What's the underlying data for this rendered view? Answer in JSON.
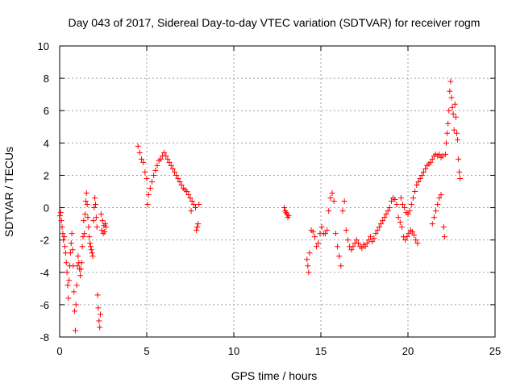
{
  "chart_data": {
    "type": "scatter",
    "title": "Day 043 of 2017, Sidereal Day-to-day VTEC variation (SDTVAR) for receiver rogm",
    "xlabel": "GPS time / hours",
    "ylabel": "SDTVAR / TECUs",
    "xlim": [
      0,
      25
    ],
    "ylim": [
      -8,
      10
    ],
    "xticks": [
      0,
      5,
      10,
      15,
      20,
      25
    ],
    "yticks": [
      -8,
      -6,
      -4,
      -2,
      0,
      2,
      4,
      6,
      8,
      10
    ],
    "grid": true,
    "marker": "plus",
    "color": "#ff0000",
    "series": [
      {
        "name": "SDTVAR",
        "points": [
          [
            0.02,
            -0.5
          ],
          [
            0.06,
            -0.3
          ],
          [
            0.1,
            -0.8
          ],
          [
            0.14,
            -1.2
          ],
          [
            0.18,
            -1.6
          ],
          [
            0.22,
            -2.0
          ],
          [
            0.26,
            -1.8
          ],
          [
            0.3,
            -2.4
          ],
          [
            0.34,
            -2.8
          ],
          [
            0.38,
            -3.4
          ],
          [
            0.42,
            -4.0
          ],
          [
            0.46,
            -4.8
          ],
          [
            0.5,
            -5.6
          ],
          [
            0.54,
            -4.5
          ],
          [
            0.58,
            -3.6
          ],
          [
            0.62,
            -2.8
          ],
          [
            0.66,
            -2.2
          ],
          [
            0.7,
            -1.6
          ],
          [
            0.74,
            -2.6
          ],
          [
            0.78,
            -3.6
          ],
          [
            0.82,
            -5.2
          ],
          [
            0.86,
            -6.4
          ],
          [
            0.9,
            -7.6
          ],
          [
            0.94,
            -6.0
          ],
          [
            0.98,
            -4.8
          ],
          [
            1.02,
            -3.6
          ],
          [
            1.06,
            -3.0
          ],
          [
            1.1,
            -3.4
          ],
          [
            1.14,
            -3.8
          ],
          [
            1.18,
            -4.2
          ],
          [
            1.22,
            -3.8
          ],
          [
            1.26,
            -3.4
          ],
          [
            1.3,
            -2.4
          ],
          [
            1.34,
            -1.8
          ],
          [
            1.38,
            -0.8
          ],
          [
            1.42,
            -1.6
          ],
          [
            1.46,
            -0.4
          ],
          [
            1.5,
            0.4
          ],
          [
            1.54,
            0.9
          ],
          [
            1.58,
            0.2
          ],
          [
            1.62,
            -0.6
          ],
          [
            1.66,
            -1.2
          ],
          [
            1.7,
            -1.8
          ],
          [
            1.74,
            -2.2
          ],
          [
            1.78,
            -2.4
          ],
          [
            1.82,
            -2.6
          ],
          [
            1.86,
            -2.8
          ],
          [
            1.9,
            -3.0
          ],
          [
            1.94,
            -0.8
          ],
          [
            1.98,
            0.0
          ],
          [
            2.02,
            0.6
          ],
          [
            2.06,
            0.2
          ],
          [
            2.1,
            -0.6
          ],
          [
            2.14,
            -1.2
          ],
          [
            2.18,
            -5.4
          ],
          [
            2.22,
            -6.2
          ],
          [
            2.26,
            -7.0
          ],
          [
            2.3,
            -7.4
          ],
          [
            2.34,
            -6.6
          ],
          [
            2.38,
            -0.4
          ],
          [
            2.42,
            -1.4
          ],
          [
            2.46,
            -0.8
          ],
          [
            2.5,
            -1.6
          ],
          [
            2.54,
            -1.1
          ],
          [
            2.58,
            -1.5
          ],
          [
            2.62,
            -1.0
          ],
          [
            2.66,
            -1.2
          ],
          [
            4.5,
            3.8
          ],
          [
            4.6,
            3.4
          ],
          [
            4.7,
            3.0
          ],
          [
            4.8,
            2.8
          ],
          [
            4.9,
            2.2
          ],
          [
            5.0,
            1.8
          ],
          [
            5.05,
            0.2
          ],
          [
            5.1,
            0.8
          ],
          [
            5.2,
            1.2
          ],
          [
            5.3,
            1.6
          ],
          [
            5.4,
            2.0
          ],
          [
            5.5,
            2.3
          ],
          [
            5.6,
            2.6
          ],
          [
            5.7,
            2.9
          ],
          [
            5.8,
            3.0
          ],
          [
            5.9,
            3.2
          ],
          [
            6.0,
            3.4
          ],
          [
            6.1,
            3.2
          ],
          [
            6.2,
            3.0
          ],
          [
            6.3,
            2.8
          ],
          [
            6.4,
            2.6
          ],
          [
            6.5,
            2.4
          ],
          [
            6.6,
            2.2
          ],
          [
            6.7,
            2.0
          ],
          [
            6.8,
            1.8
          ],
          [
            6.9,
            1.6
          ],
          [
            7.0,
            1.4
          ],
          [
            7.1,
            1.2
          ],
          [
            7.2,
            1.1
          ],
          [
            7.3,
            1.0
          ],
          [
            7.4,
            0.8
          ],
          [
            7.5,
            0.6
          ],
          [
            7.55,
            -0.2
          ],
          [
            7.6,
            0.4
          ],
          [
            7.7,
            0.2
          ],
          [
            7.8,
            0.0
          ],
          [
            7.85,
            -1.4
          ],
          [
            7.9,
            -1.2
          ],
          [
            7.95,
            -1.0
          ],
          [
            8.0,
            0.2
          ],
          [
            12.9,
            0.0
          ],
          [
            12.95,
            -0.2
          ],
          [
            13.0,
            -0.3
          ],
          [
            13.05,
            -0.4
          ],
          [
            13.1,
            -0.6
          ],
          [
            13.15,
            -0.5
          ],
          [
            14.2,
            -3.2
          ],
          [
            14.25,
            -3.6
          ],
          [
            14.3,
            -4.0
          ],
          [
            14.35,
            -2.8
          ],
          [
            14.45,
            -1.4
          ],
          [
            14.55,
            -1.5
          ],
          [
            14.65,
            -1.8
          ],
          [
            14.75,
            -2.4
          ],
          [
            14.85,
            -2.2
          ],
          [
            14.95,
            -1.6
          ],
          [
            15.05,
            -1.2
          ],
          [
            15.15,
            -1.6
          ],
          [
            15.25,
            -1.6
          ],
          [
            15.35,
            -1.4
          ],
          [
            15.45,
            -0.2
          ],
          [
            15.55,
            0.6
          ],
          [
            15.65,
            0.9
          ],
          [
            15.75,
            0.4
          ],
          [
            15.85,
            -1.6
          ],
          [
            15.95,
            -2.4
          ],
          [
            16.05,
            -3.0
          ],
          [
            16.15,
            -3.6
          ],
          [
            16.25,
            -0.2
          ],
          [
            16.35,
            0.4
          ],
          [
            16.45,
            -1.4
          ],
          [
            16.55,
            -2.0
          ],
          [
            16.65,
            -2.4
          ],
          [
            16.75,
            -2.6
          ],
          [
            16.85,
            -2.4
          ],
          [
            16.95,
            -2.2
          ],
          [
            17.05,
            -2.0
          ],
          [
            17.15,
            -2.2
          ],
          [
            17.25,
            -2.4
          ],
          [
            17.35,
            -2.5
          ],
          [
            17.45,
            -2.3
          ],
          [
            17.55,
            -2.4
          ],
          [
            17.65,
            -2.2
          ],
          [
            17.75,
            -2.0
          ],
          [
            17.85,
            -1.8
          ],
          [
            17.95,
            -2.1
          ],
          [
            18.05,
            -1.9
          ],
          [
            18.15,
            -1.6
          ],
          [
            18.25,
            -1.4
          ],
          [
            18.35,
            -1.2
          ],
          [
            18.45,
            -1.0
          ],
          [
            18.55,
            -0.8
          ],
          [
            18.65,
            -0.6
          ],
          [
            18.75,
            -0.4
          ],
          [
            18.85,
            -0.2
          ],
          [
            18.95,
            0.0
          ],
          [
            19.05,
            0.4
          ],
          [
            19.15,
            0.6
          ],
          [
            19.25,
            0.5
          ],
          [
            19.35,
            0.2
          ],
          [
            19.45,
            -0.6
          ],
          [
            19.55,
            -0.9
          ],
          [
            19.65,
            -1.2
          ],
          [
            19.75,
            -1.8
          ],
          [
            19.85,
            -2.0
          ],
          [
            19.95,
            -1.8
          ],
          [
            20.05,
            -1.6
          ],
          [
            20.15,
            -1.4
          ],
          [
            20.25,
            -1.5
          ],
          [
            20.35,
            -1.7
          ],
          [
            20.45,
            -2.0
          ],
          [
            20.55,
            -2.2
          ],
          [
            19.6,
            0.6
          ],
          [
            19.7,
            0.2
          ],
          [
            19.8,
            0.0
          ],
          [
            19.9,
            -0.3
          ],
          [
            20.0,
            -0.4
          ],
          [
            20.1,
            -0.2
          ],
          [
            20.2,
            0.2
          ],
          [
            20.3,
            0.6
          ],
          [
            20.4,
            1.0
          ],
          [
            20.5,
            1.4
          ],
          [
            20.6,
            1.6
          ],
          [
            20.7,
            1.8
          ],
          [
            20.8,
            2.0
          ],
          [
            20.9,
            2.2
          ],
          [
            21.0,
            2.4
          ],
          [
            21.1,
            2.6
          ],
          [
            21.2,
            2.7
          ],
          [
            21.3,
            2.8
          ],
          [
            21.4,
            3.0
          ],
          [
            21.5,
            3.2
          ],
          [
            21.6,
            3.3
          ],
          [
            21.7,
            3.2
          ],
          [
            21.8,
            3.3
          ],
          [
            21.9,
            3.1
          ],
          [
            21.4,
            -1.0
          ],
          [
            21.5,
            -0.6
          ],
          [
            21.6,
            -0.2
          ],
          [
            21.7,
            0.2
          ],
          [
            21.8,
            0.6
          ],
          [
            21.9,
            0.8
          ],
          [
            22.0,
            3.2
          ],
          [
            22.05,
            -1.2
          ],
          [
            22.1,
            -1.8
          ],
          [
            22.15,
            3.3
          ],
          [
            22.2,
            4.0
          ],
          [
            22.25,
            4.6
          ],
          [
            22.3,
            5.2
          ],
          [
            22.35,
            6.0
          ],
          [
            22.4,
            7.2
          ],
          [
            22.45,
            7.8
          ],
          [
            22.5,
            6.8
          ],
          [
            22.55,
            6.2
          ],
          [
            22.6,
            5.8
          ],
          [
            22.65,
            4.8
          ],
          [
            22.7,
            6.4
          ],
          [
            22.75,
            5.6
          ],
          [
            22.8,
            4.6
          ],
          [
            22.85,
            4.2
          ],
          [
            22.9,
            3.0
          ],
          [
            22.95,
            2.2
          ],
          [
            23.0,
            1.8
          ]
        ]
      }
    ]
  }
}
